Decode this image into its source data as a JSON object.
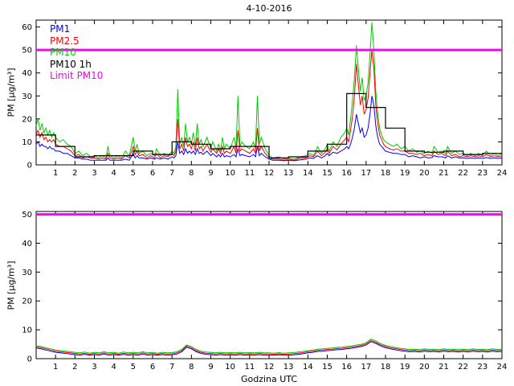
{
  "figure": {
    "background": "#ffffff"
  },
  "chart_data": [
    {
      "type": "line",
      "title": "4-10-2016",
      "xlabel": "",
      "ylabel": "PM [µg/m³]",
      "xlim": [
        0,
        24
      ],
      "ylim": [
        0,
        63
      ],
      "xticks": [
        1,
        2,
        3,
        4,
        5,
        6,
        7,
        8,
        9,
        10,
        11,
        12,
        13,
        14,
        15,
        16,
        17,
        18,
        19,
        20,
        21,
        22,
        23,
        24
      ],
      "yticks": [
        0,
        10,
        20,
        30,
        40,
        50,
        60
      ],
      "grid": false,
      "legend_position": "top-left-inside",
      "legend": [
        {
          "label": "PM1",
          "color": "#0000ff"
        },
        {
          "label": "PM2.5",
          "color": "#ff0000"
        },
        {
          "label": "PM10",
          "color": "#00cc00"
        },
        {
          "label": "PM10 1h",
          "color": "#000000"
        },
        {
          "label": "Limit PM10",
          "color": "#ff00ff"
        }
      ],
      "x": [
        0,
        0.1,
        0.2,
        0.3,
        0.4,
        0.5,
        0.6,
        0.7,
        0.8,
        0.9,
        1.0,
        1.2,
        1.4,
        1.6,
        1.8,
        2.0,
        2.2,
        2.4,
        2.6,
        2.8,
        3.0,
        3.2,
        3.4,
        3.6,
        3.7,
        3.8,
        4.0,
        4.2,
        4.4,
        4.6,
        4.8,
        5.0,
        5.1,
        5.2,
        5.3,
        5.5,
        5.7,
        5.9,
        6.1,
        6.2,
        6.4,
        6.6,
        6.8,
        7.0,
        7.1,
        7.2,
        7.3,
        7.4,
        7.5,
        7.6,
        7.7,
        7.8,
        7.9,
        8.0,
        8.1,
        8.2,
        8.3,
        8.4,
        8.5,
        8.6,
        8.8,
        9.0,
        9.1,
        9.3,
        9.4,
        9.5,
        9.6,
        9.7,
        9.8,
        10.0,
        10.2,
        10.3,
        10.4,
        10.5,
        10.6,
        10.8,
        11.0,
        11.2,
        11.3,
        11.4,
        11.5,
        11.6,
        11.8,
        12.0,
        12.2,
        12.5,
        12.8,
        13.0,
        13.3,
        13.6,
        13.9,
        14.1,
        14.3,
        14.5,
        14.7,
        14.9,
        15.0,
        15.1,
        15.3,
        15.5,
        15.7,
        15.9,
        16.0,
        16.1,
        16.2,
        16.3,
        16.4,
        16.5,
        16.6,
        16.7,
        16.8,
        16.9,
        17.0,
        17.1,
        17.2,
        17.3,
        17.4,
        17.5,
        17.6,
        17.7,
        17.8,
        17.9,
        18.0,
        18.2,
        18.4,
        18.6,
        18.8,
        19.0,
        19.2,
        19.4,
        19.6,
        19.8,
        20.0,
        20.2,
        20.4,
        20.5,
        20.7,
        20.9,
        21.1,
        21.2,
        21.4,
        21.6,
        21.8,
        22.0,
        22.2,
        22.4,
        22.6,
        22.8,
        23.0,
        23.2,
        23.4,
        23.6,
        23.8,
        24.0
      ],
      "series": [
        {
          "name": "PM1",
          "color": "#0000ff",
          "y": [
            9,
            10,
            8,
            9,
            8,
            8,
            7,
            8,
            7,
            7,
            6,
            6,
            5,
            5,
            4,
            3,
            3,
            2.5,
            2.5,
            2,
            2,
            2,
            2,
            2,
            3,
            2,
            2,
            2,
            2,
            2.5,
            2,
            5,
            3,
            4,
            3,
            3,
            2.5,
            3,
            2.5,
            3,
            2.5,
            3,
            2.5,
            3.5,
            3,
            4,
            10,
            5,
            6,
            4.5,
            7,
            5,
            6,
            5,
            6,
            4.5,
            7,
            5,
            5.5,
            4.5,
            6,
            4,
            5,
            3.5,
            4.5,
            3.5,
            5,
            3.5,
            4,
            3.5,
            4.5,
            3.5,
            7,
            4,
            4.5,
            4,
            3.5,
            4.5,
            3.5,
            8,
            4,
            5,
            3.5,
            2.5,
            2,
            2,
            1.8,
            2,
            1.8,
            2.2,
            2.5,
            3,
            2.8,
            4,
            3,
            4,
            5,
            4,
            5.5,
            5,
            6,
            7,
            8,
            7,
            9,
            12,
            16,
            22,
            18,
            14,
            16,
            12,
            13,
            16,
            22,
            30,
            26,
            17,
            12,
            9,
            8,
            7,
            6,
            5.5,
            5,
            5,
            4.5,
            4.5,
            3.5,
            4,
            3.5,
            3,
            3.5,
            3,
            3.2,
            4,
            3.5,
            3.5,
            3,
            4,
            3,
            3.5,
            3,
            3,
            2.8,
            3,
            2.8,
            3,
            2.8,
            3.2,
            2.8,
            3,
            2.8,
            3
          ]
        },
        {
          "name": "PM2.5",
          "color": "#ff0000",
          "y": [
            13,
            15,
            12,
            14,
            11,
            12,
            10,
            11,
            10,
            11,
            9,
            8,
            8,
            7,
            6,
            4,
            4.5,
            3,
            3.5,
            3,
            3,
            2.5,
            3,
            2.5,
            5,
            3,
            2.5,
            3,
            2.5,
            4,
            3,
            8,
            4.5,
            6,
            4,
            4.5,
            3,
            4,
            3,
            5,
            3,
            4,
            3.5,
            5,
            4,
            6,
            20,
            7,
            9,
            6,
            12,
            8,
            9,
            7,
            10,
            6,
            12,
            7,
            8,
            6,
            9,
            5.5,
            7,
            5,
            7,
            5,
            8,
            5,
            6,
            5,
            8,
            5,
            15,
            6,
            7,
            6,
            5,
            7,
            5,
            16,
            6,
            8,
            5,
            3,
            2.5,
            2.5,
            2,
            2.5,
            2,
            3,
            3,
            4,
            3.5,
            6,
            4,
            5.5,
            7,
            5,
            8,
            6.5,
            9,
            11,
            12,
            10,
            15,
            21,
            30,
            44,
            35,
            26,
            30,
            22,
            24,
            29,
            40,
            50,
            42,
            26,
            18,
            13,
            11,
            9,
            8,
            7,
            6.5,
            7,
            6,
            6,
            5,
            5,
            4.5,
            5,
            4,
            4.5,
            4,
            6,
            4.5,
            5,
            4,
            6,
            4,
            4.5,
            3.5,
            4,
            3.5,
            4,
            3.5,
            4,
            3.5,
            4.5,
            3.5,
            4,
            3.5,
            4
          ]
        },
        {
          "name": "PM10",
          "color": "#00cc00",
          "y": [
            17,
            20,
            15,
            18,
            14,
            16,
            13,
            15,
            12,
            14,
            12,
            10,
            11,
            9,
            8,
            5,
            6,
            4,
            5,
            3.5,
            4,
            3,
            4,
            3,
            8,
            4,
            3,
            4,
            3,
            6,
            4,
            12,
            6,
            9,
            5,
            6,
            4,
            5,
            4,
            7,
            4,
            5,
            4,
            6,
            5,
            8,
            33,
            9,
            12,
            8,
            18,
            10,
            12,
            9,
            14,
            8,
            18,
            9,
            11,
            8,
            12,
            7,
            10,
            6,
            9,
            6,
            12,
            7,
            9,
            7,
            12,
            7,
            30,
            8,
            10,
            8,
            7,
            10,
            7,
            30,
            9,
            12,
            7,
            4,
            3,
            3.5,
            2.5,
            3,
            2.5,
            3.5,
            4,
            5,
            4,
            8,
            5,
            7,
            9,
            6,
            10,
            8,
            12,
            14,
            16,
            13,
            20,
            28,
            38,
            52,
            42,
            32,
            38,
            28,
            30,
            36,
            48,
            62,
            50,
            32,
            22,
            16,
            13,
            11,
            10,
            9,
            8,
            9,
            7,
            8,
            6,
            7,
            5.5,
            6,
            5,
            6,
            5,
            8,
            5.5,
            6,
            5,
            8,
            5,
            6,
            4.5,
            5,
            4,
            5,
            4,
            5,
            4,
            6,
            4,
            5,
            4,
            5
          ]
        }
      ],
      "step_series": {
        "name": "PM10 1h",
        "color": "#000000",
        "hourly_values": [
          13,
          8,
          3.5,
          4,
          4,
          6,
          4.5,
          10,
          9,
          7,
          8,
          8,
          3,
          3.5,
          6,
          9,
          31,
          25,
          16,
          6,
          5.5,
          6,
          4.5,
          5
        ]
      },
      "limit_line": {
        "name": "Limit PM10",
        "color": "#ff00ff",
        "value": 50
      }
    },
    {
      "type": "line",
      "title": "",
      "xlabel": "Godzina UTC",
      "ylabel": "PM [µg/m³]",
      "xlim": [
        0,
        24
      ],
      "ylim": [
        0,
        51
      ],
      "xticks": [
        1,
        2,
        3,
        4,
        5,
        6,
        7,
        8,
        9,
        10,
        11,
        12,
        13,
        14,
        15,
        16,
        17,
        18,
        19,
        20,
        21,
        22,
        23,
        24
      ],
      "yticks": [
        0,
        10,
        20,
        30,
        40,
        50
      ],
      "grid": false,
      "x": [
        0,
        0.25,
        0.5,
        0.75,
        1,
        1.25,
        1.5,
        1.75,
        2,
        2.25,
        2.5,
        2.75,
        3,
        3.25,
        3.5,
        3.75,
        4,
        4.25,
        4.5,
        4.75,
        5,
        5.25,
        5.5,
        5.75,
        6,
        6.25,
        6.5,
        6.75,
        7,
        7.25,
        7.5,
        7.75,
        8,
        8.25,
        8.5,
        8.75,
        9,
        9.25,
        9.5,
        9.75,
        10,
        10.25,
        10.5,
        10.75,
        11,
        11.25,
        11.5,
        11.75,
        12,
        12.25,
        12.5,
        12.75,
        13,
        13.25,
        13.5,
        13.75,
        14,
        14.25,
        14.5,
        14.75,
        15,
        15.25,
        15.5,
        15.75,
        16,
        16.25,
        16.5,
        16.75,
        17,
        17.25,
        17.5,
        17.75,
        18,
        18.25,
        18.5,
        18.75,
        19,
        19.25,
        19.5,
        19.75,
        20,
        20.25,
        20.5,
        20.75,
        21,
        21.25,
        21.5,
        21.75,
        22,
        22.25,
        22.5,
        22.75,
        23,
        23.25,
        23.5,
        23.75,
        24
      ],
      "series": [
        {
          "name": "PM1",
          "color": "#0000ff",
          "y": [
            3.7,
            3.4,
            3,
            2.6,
            2.2,
            2,
            1.8,
            1.6,
            1.4,
            1.2,
            1.5,
            1.2,
            1.4,
            1.2,
            1.6,
            1.2,
            1.4,
            1.2,
            1.5,
            1.2,
            1.4,
            1.2,
            1.6,
            1.2,
            1.4,
            1.2,
            1.4,
            1.2,
            1.3,
            1.6,
            2.4,
            4,
            3.4,
            2.4,
            1.8,
            1.5,
            1.4,
            1.2,
            1.4,
            1.2,
            1.3,
            1.2,
            1.4,
            1.2,
            1.3,
            1.2,
            1.4,
            1.2,
            1.2,
            1.2,
            1.3,
            1.2,
            1.2,
            1.3,
            1.5,
            1.7,
            2,
            2.2,
            2.5,
            2.6,
            2.8,
            2.9,
            3.1,
            3.2,
            3.4,
            3.6,
            3.9,
            4.2,
            4.7,
            5.9,
            5.3,
            4.4,
            3.8,
            3.4,
            3.1,
            2.8,
            2.6,
            2.4,
            2.5,
            2.3,
            2.6,
            2.4,
            2.5,
            2.3,
            2.6,
            2.4,
            2.5,
            2.3,
            2.5,
            2.3,
            2.6,
            2.4,
            2.5,
            2.3,
            2.6,
            2.4,
            2.5
          ]
        },
        {
          "name": "PM2.5",
          "color": "#ff0000",
          "y": [
            4.1,
            3.8,
            3.4,
            3,
            2.6,
            2.4,
            2.2,
            2,
            1.8,
            1.6,
            1.9,
            1.5,
            1.8,
            1.6,
            2,
            1.6,
            1.8,
            1.5,
            1.9,
            1.6,
            1.8,
            1.6,
            2,
            1.6,
            1.8,
            1.5,
            1.8,
            1.6,
            1.7,
            2,
            2.8,
            4.4,
            3.8,
            2.8,
            2.2,
            1.9,
            1.8,
            1.6,
            1.8,
            1.6,
            1.7,
            1.6,
            1.8,
            1.6,
            1.7,
            1.6,
            1.8,
            1.6,
            1.6,
            1.5,
            1.7,
            1.5,
            1.6,
            1.7,
            1.9,
            2.1,
            2.4,
            2.6,
            2.9,
            3,
            3.2,
            3.3,
            3.5,
            3.6,
            3.8,
            4,
            4.3,
            4.6,
            5.1,
            6.3,
            5.7,
            4.8,
            4.2,
            3.8,
            3.5,
            3.2,
            3,
            2.8,
            2.9,
            2.7,
            3,
            2.8,
            2.9,
            2.7,
            3,
            2.8,
            2.9,
            2.7,
            2.9,
            2.7,
            3,
            2.8,
            2.9,
            2.7,
            3,
            2.8,
            2.9
          ]
        },
        {
          "name": "PM10",
          "color": "#00cc00",
          "y": [
            4.5,
            4.2,
            3.8,
            3.4,
            3,
            2.8,
            2.6,
            2.4,
            2.2,
            2,
            2.3,
            1.9,
            2.2,
            2,
            2.4,
            2,
            2.2,
            1.9,
            2.3,
            2,
            2.2,
            2,
            2.4,
            2,
            2.2,
            1.9,
            2.2,
            2,
            2.1,
            2.4,
            3.2,
            4.8,
            4.2,
            3.2,
            2.6,
            2.3,
            2.2,
            2,
            2.2,
            2,
            2.1,
            2,
            2.2,
            2,
            2.1,
            2,
            2.2,
            2,
            2,
            1.9,
            2.1,
            1.9,
            2,
            2.1,
            2.3,
            2.5,
            2.8,
            3,
            3.3,
            3.4,
            3.6,
            3.7,
            3.9,
            4,
            4.2,
            4.4,
            4.7,
            5,
            5.5,
            6.8,
            6.2,
            5.2,
            4.6,
            4.2,
            3.9,
            3.6,
            3.4,
            3.2,
            3.3,
            3.1,
            3.4,
            3.2,
            3.3,
            3.1,
            3.4,
            3.2,
            3.3,
            3.1,
            3.3,
            3.1,
            3.4,
            3.2,
            3.3,
            3.1,
            3.4,
            3.2,
            3.3
          ]
        }
      ],
      "limit_line": {
        "name": "Limit PM10",
        "color": "#ff00ff",
        "value": 50
      }
    }
  ]
}
